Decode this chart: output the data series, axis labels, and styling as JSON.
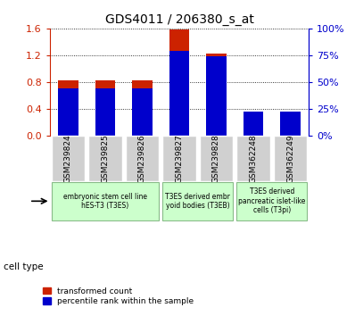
{
  "title": "GDS4011 / 206380_s_at",
  "samples": [
    "GSM239824",
    "GSM239825",
    "GSM239826",
    "GSM239827",
    "GSM239828",
    "GSM362248",
    "GSM362249"
  ],
  "transformed_count": [
    0.82,
    0.82,
    0.82,
    1.58,
    1.22,
    0.33,
    0.35
  ],
  "percentile_pct": [
    44,
    44,
    44,
    79,
    74,
    22,
    22
  ],
  "ylim_left": [
    0,
    1.6
  ],
  "ylim_right": [
    0,
    100
  ],
  "yticks_left": [
    0,
    0.4,
    0.8,
    1.2,
    1.6
  ],
  "yticks_right": [
    0,
    25,
    50,
    75,
    100
  ],
  "bar_color": "#cc2200",
  "percentile_color": "#0000cc",
  "bar_width": 0.55,
  "cell_type_label": "cell type",
  "legend_red": "transformed count",
  "legend_blue": "percentile rank within the sample",
  "left_axis_color": "#cc2200",
  "right_axis_color": "#0000cc",
  "group_boundaries": [
    [
      0,
      2,
      "embryonic stem cell line\nhES-T3 (T3ES)"
    ],
    [
      3,
      4,
      "T3ES derived embr\nyoid bodies (T3EB)"
    ],
    [
      5,
      6,
      "T3ES derived\npancreatic islet-like\ncells (T3pi)"
    ]
  ],
  "group_color": "#ccffcc",
  "sample_bg": "#d0d0d0"
}
